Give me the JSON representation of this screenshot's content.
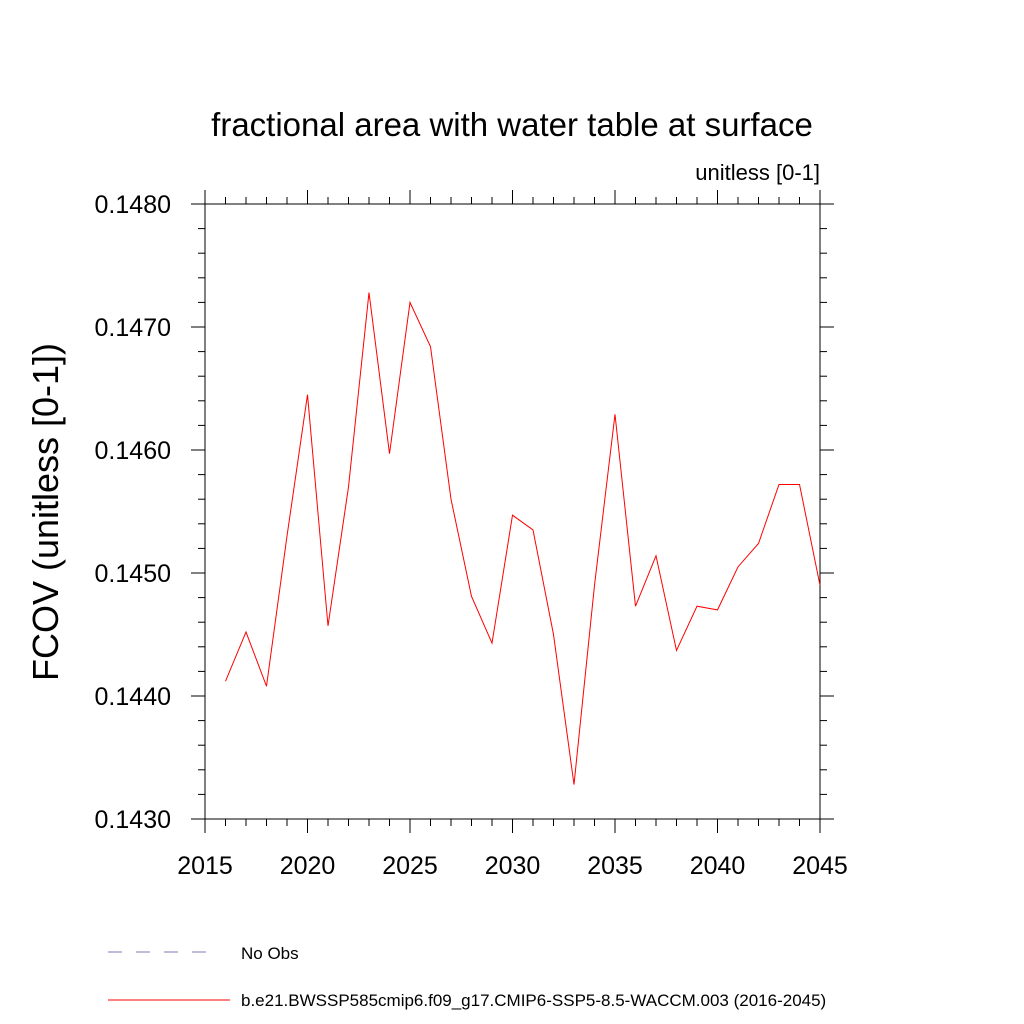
{
  "chart_data": {
    "type": "line",
    "title": "fractional area with water table at surface",
    "subtitle": "unitless [0-1]",
    "xlabel": "",
    "ylabel": "FCOV  (unitless [0-1])",
    "xlim": [
      2015,
      2045
    ],
    "ylim": [
      0.143,
      0.148
    ],
    "x_major_ticks": [
      2015,
      2020,
      2025,
      2030,
      2035,
      2040,
      2045
    ],
    "x_tick_labels": [
      "2015",
      "2020",
      "2025",
      "2030",
      "2035",
      "2040",
      "2045"
    ],
    "y_major_ticks": [
      0.143,
      0.144,
      0.145,
      0.146,
      0.147,
      0.148
    ],
    "y_tick_labels": [
      "0.1430",
      "0.1440",
      "0.1450",
      "0.1460",
      "0.1470",
      "0.1480"
    ],
    "grid": false,
    "series": [
      {
        "name": "b.e21.BWSSP585cmip6.f09_g17.CMIP6-SSP5-8.5-WACCM.003 (2016-2045)",
        "color": "#ff0000",
        "style": "solid",
        "x": [
          2016,
          2017,
          2018,
          2019,
          2020,
          2021,
          2022,
          2023,
          2024,
          2025,
          2026,
          2027,
          2028,
          2029,
          2030,
          2031,
          2032,
          2033,
          2034,
          2035,
          2036,
          2037,
          2038,
          2039,
          2040,
          2041,
          2042,
          2043,
          2044,
          2045
        ],
        "values": [
          0.14412,
          0.14452,
          0.14408,
          0.1453,
          0.14645,
          0.14457,
          0.1457,
          0.14728,
          0.14597,
          0.1472,
          0.14684,
          0.1456,
          0.14481,
          0.14443,
          0.14547,
          0.14535,
          0.1445,
          0.14328,
          0.1449,
          0.14629,
          0.14473,
          0.14514,
          0.14437,
          0.14473,
          0.1447,
          0.14505,
          0.14524,
          0.14572,
          0.14572,
          0.1449
        ]
      }
    ],
    "legend": {
      "position": "bottom",
      "entries": [
        {
          "label": "No Obs",
          "color": "#7b7bb5",
          "style": "dashed"
        },
        {
          "label": "b.e21.BWSSP585cmip6.f09_g17.CMIP6-SSP5-8.5-WACCM.003 (2016-2045)",
          "color": "#ff0000",
          "style": "solid"
        }
      ]
    }
  }
}
